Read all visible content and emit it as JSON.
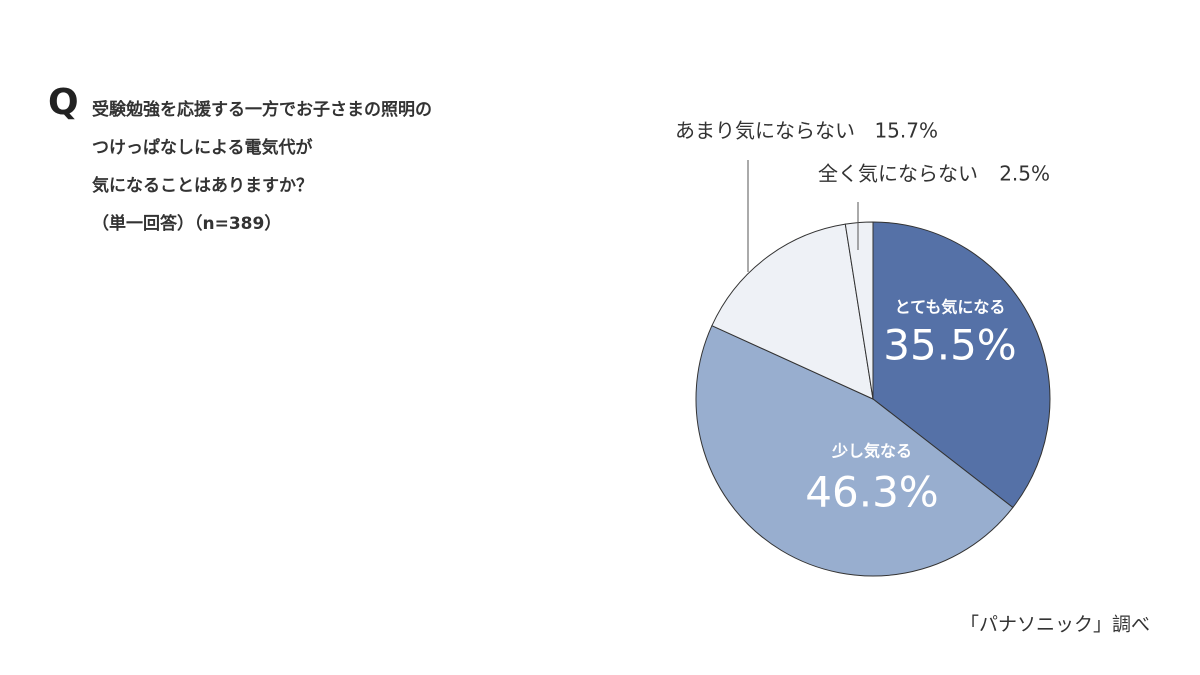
{
  "chart_data": {
    "type": "pie",
    "question_mark": "Q",
    "question_lines": [
      "受験勉強を応援する一方でお子さまの照明の",
      "つけっぱなしによる電気代が",
      "気になることはありますか？",
      "（単一回答）（n=389）"
    ],
    "categories": [
      "とても気になる",
      "少し気なる",
      "あまり気にならない",
      "全く気にならない"
    ],
    "values": [
      35.5,
      46.3,
      15.7,
      2.5
    ],
    "value_labels": [
      "35.5%",
      "46.3%",
      "15.7%",
      "2.5%"
    ],
    "colors": [
      "#5571a7",
      "#98aecf",
      "#eef1f6",
      "#eef1f6"
    ],
    "source": "「パナソニック」調べ"
  }
}
